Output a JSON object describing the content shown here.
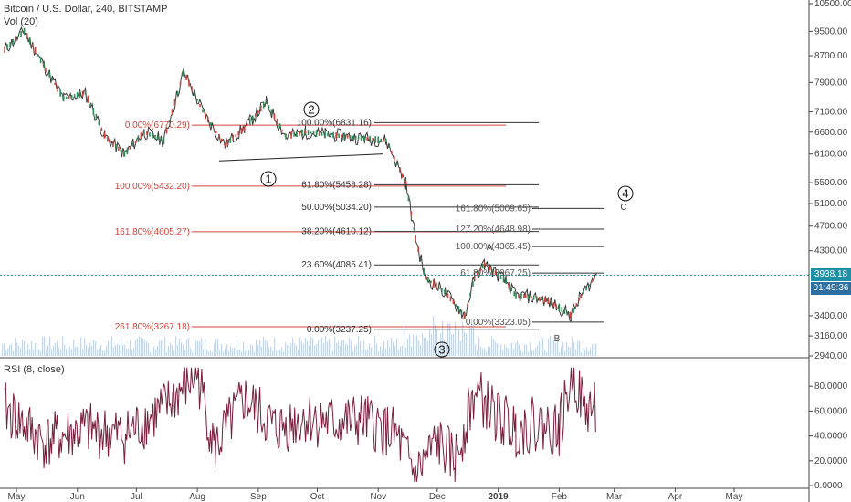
{
  "header": {
    "title": "Bitcoin / U.S. Dollar, 240, BITSTAMP",
    "vol_label": "Vol (20)",
    "rsi_label": "RSI (8, close)"
  },
  "badges": {
    "price": "3938.18",
    "countdown": "01:49:36",
    "price_color": "#1f8fa6",
    "countdown_color": "#2d6fa0"
  },
  "colors": {
    "candle_up": "#2e8b57",
    "candle_down": "#d1443c",
    "fib_red": "#d1443c",
    "fib_black": "#333333",
    "rsi_line": "#7a1f3d",
    "price_line": "#1f8fa6"
  },
  "chart_data": [
    {
      "type": "candlestick",
      "title": "Bitcoin / U.S. Dollar, 240, BITSTAMP",
      "y_scale": "log",
      "ylim": [
        2940,
        10500
      ],
      "y_ticks": [
        "10500.00",
        "9500.00",
        "8700.00",
        "7900.00",
        "7100.00",
        "6600.00",
        "6100.00",
        "5500.00",
        "5100.00",
        "4700.00",
        "4300.00",
        "3400.00",
        "3160.00",
        "2940.00"
      ],
      "x_ticks": [
        "May",
        "Jun",
        "Jul",
        "Aug",
        "Sep",
        "Oct",
        "Nov",
        "Dec",
        "2019",
        "Feb",
        "Mar",
        "Apr",
        "May"
      ],
      "last_price": 3938.18,
      "series": [
        {
          "name": "",
          "x": [
            "2018-04-25",
            "2018-05-05",
            "2018-05-15",
            "2018-05-25",
            "2018-06-05",
            "2018-06-15",
            "2018-06-25",
            "2018-07-05",
            "2018-07-15",
            "2018-07-25",
            "2018-08-05",
            "2018-08-15",
            "2018-08-25",
            "2018-09-05",
            "2018-09-15",
            "2018-09-25",
            "2018-10-05",
            "2018-10-15",
            "2018-10-25",
            "2018-11-05",
            "2018-11-15",
            "2018-11-20",
            "2018-11-25",
            "2018-12-05",
            "2018-12-15",
            "2018-12-20",
            "2018-12-25",
            "2019-01-05",
            "2019-01-10",
            "2019-01-15",
            "2019-01-25",
            "2019-02-01",
            "2019-02-07",
            "2019-02-12",
            "2019-02-20"
          ],
          "values": [
            8900,
            9500,
            8400,
            7450,
            7600,
            6500,
            6100,
            6600,
            6400,
            8200,
            7000,
            6300,
            6700,
            7350,
            6500,
            6600,
            6550,
            6500,
            6450,
            6400,
            5500,
            4500,
            3900,
            3700,
            3400,
            3900,
            4100,
            3850,
            3650,
            3650,
            3600,
            3500,
            3400,
            3650,
            3938
          ]
        }
      ],
      "fib_levels_left": [
        {
          "label": "0.00%(6770.29)",
          "value": 6770.29
        },
        {
          "label": "100.00%(5432.20)",
          "value": 5432.2
        },
        {
          "label": "161.80%(4605.27)",
          "value": 4605.27
        },
        {
          "label": "261.80%(3267.18)",
          "value": 3267.18
        }
      ],
      "fib_levels_right": [
        {
          "label": "100.00%(6831.16)",
          "value": 6831.16
        },
        {
          "label": "61.80%(5458.28)",
          "value": 5458.28
        },
        {
          "label": "50.00%(5034.20)",
          "value": 5034.2
        },
        {
          "label": "38.20%(4610.12)",
          "value": 4610.12
        },
        {
          "label": "23.60%(4085.41)",
          "value": 4085.41
        },
        {
          "label": "0.00%(3237.25)",
          "value": 3237.25
        }
      ],
      "fib_ext": [
        {
          "label": "161.80%(5009.65)",
          "value": 5009.65
        },
        {
          "label": "127.20%(4648.98)",
          "value": 4648.98
        },
        {
          "label": "100.00%(4365.45)",
          "value": 4365.45
        },
        {
          "label": "61.80%(3967.25)",
          "value": 3967.25
        },
        {
          "label": "0.00%(3323.05)",
          "value": 3323.05
        }
      ],
      "wave_labels": [
        {
          "text": "1",
          "circled": true
        },
        {
          "text": "2",
          "circled": true
        },
        {
          "text": "3",
          "circled": true
        },
        {
          "text": "4",
          "circled": true
        },
        {
          "text": "A",
          "circled": false
        },
        {
          "text": "B",
          "circled": false
        },
        {
          "text": "C",
          "circled": false
        }
      ]
    },
    {
      "type": "line",
      "title": "RSI (8, close)",
      "ylim": [
        0,
        100
      ],
      "y_ticks": [
        "80.0000",
        "60.0000",
        "40.0000",
        "20.0000",
        "0.0000"
      ],
      "series": [
        {
          "name": "",
          "x": [
            "2018-04-25",
            "2018-05-15",
            "2018-06-05",
            "2018-06-25",
            "2018-07-15",
            "2018-08-01",
            "2018-08-10",
            "2018-08-25",
            "2018-09-10",
            "2018-09-25",
            "2018-10-10",
            "2018-10-25",
            "2018-11-10",
            "2018-11-20",
            "2018-12-01",
            "2018-12-10",
            "2018-12-20",
            "2019-01-01",
            "2019-01-10",
            "2019-01-20",
            "2019-02-01",
            "2019-02-08",
            "2019-02-14",
            "2019-02-20"
          ],
          "values": [
            62,
            35,
            45,
            40,
            62,
            90,
            30,
            70,
            45,
            55,
            50,
            52,
            40,
            8,
            35,
            20,
            75,
            55,
            45,
            50,
            45,
            92,
            60,
            65
          ]
        }
      ]
    }
  ]
}
